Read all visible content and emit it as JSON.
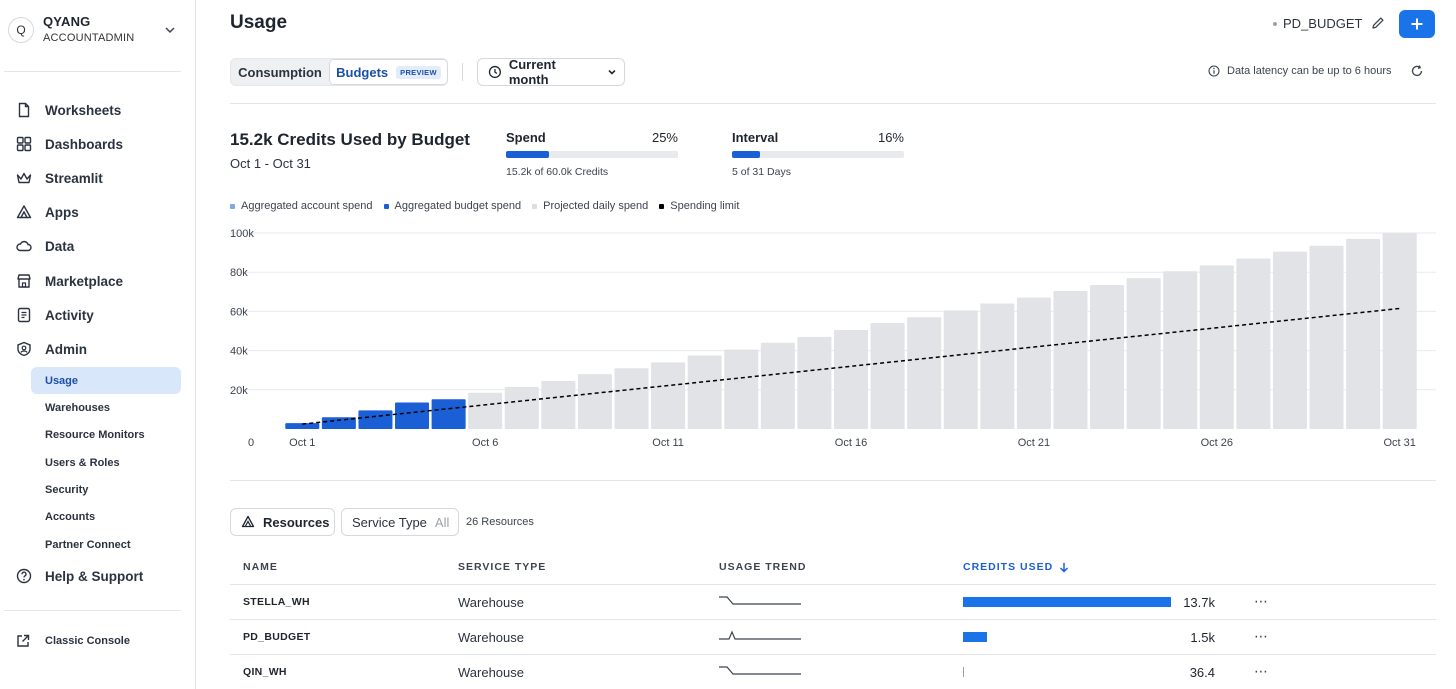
{
  "account": {
    "initial": "Q",
    "name": "QYANG",
    "role": "ACCOUNTADMIN"
  },
  "nav": [
    {
      "label": "Worksheets",
      "icon": "file-icon"
    },
    {
      "label": "Dashboards",
      "icon": "grid-icon"
    },
    {
      "label": "Streamlit",
      "icon": "crown-icon"
    },
    {
      "label": "Apps",
      "icon": "apps-icon"
    },
    {
      "label": "Data",
      "icon": "cloud-icon"
    },
    {
      "label": "Marketplace",
      "icon": "store-icon"
    },
    {
      "label": "Activity",
      "icon": "list-icon"
    },
    {
      "label": "Admin",
      "icon": "shield-icon"
    }
  ],
  "admin_sub": [
    "Usage",
    "Warehouses",
    "Resource Monitors",
    "Users & Roles",
    "Security",
    "Accounts",
    "Partner Connect"
  ],
  "help": "Help & Support",
  "classic": "Classic Console",
  "page": {
    "title": "Usage",
    "budget_name": "PD_BUDGET",
    "tabs": {
      "consumption": "Consumption",
      "budgets": "Budgets",
      "preview": "PREVIEW"
    },
    "period": "Current month",
    "latency": "Data latency can be up to 6 hours"
  },
  "summary": {
    "title": "15.2k Credits Used by Budget",
    "range": "Oct 1 - Oct 31",
    "spend": {
      "label": "Spend",
      "pct": "25%",
      "fraction": 0.25,
      "sub": "15.2k of 60.0k Credits"
    },
    "interval": {
      "label": "Interval",
      "pct": "16%",
      "fraction": 0.16,
      "sub": "5 of 31 Days"
    }
  },
  "legend": [
    {
      "label": "Aggregated account spend",
      "color": "#7fa8e6"
    },
    {
      "label": "Aggregated budget spend",
      "color": "#1a5fd6"
    },
    {
      "label": "Projected daily spend",
      "color": "#dadde1"
    },
    {
      "label": "Spending limit",
      "color": "#000000"
    }
  ],
  "chart_data": {
    "type": "bar",
    "x_labels": [
      "Oct 1",
      "Oct 6",
      "Oct 11",
      "Oct 16",
      "Oct 21",
      "Oct 26",
      "Oct 31"
    ],
    "y_ticks": [
      "100k",
      "80k",
      "60k",
      "40k",
      "20k",
      "0"
    ],
    "ylim": [
      0,
      100000
    ],
    "days": 31,
    "actual_values": [
      3000,
      6000,
      9500,
      13500,
      15200
    ],
    "projected_values": [
      18500,
      21500,
      24500,
      28000,
      31000,
      34000,
      37500,
      40500,
      44000,
      47000,
      50500,
      54000,
      57000,
      60500,
      64000,
      67000,
      70500,
      73500,
      77000,
      80500,
      83500,
      87000,
      90500,
      93500,
      97000,
      100000
    ],
    "spending_limit": {
      "start": 2500,
      "end": 61500
    }
  },
  "resources": {
    "button": "Resources",
    "service_type_label": "Service Type",
    "service_type_value": "All",
    "count": "26 Resources",
    "headers": {
      "name": "NAME",
      "type": "SERVICE TYPE",
      "trend": "USAGE TREND",
      "credits": "CREDITS USED"
    },
    "rows": [
      {
        "name": "STELLA_WH",
        "type": "Warehouse",
        "credits": "13.7k",
        "fraction": 1.0,
        "trend": "step"
      },
      {
        "name": "PD_BUDGET",
        "type": "Warehouse",
        "credits": "1.5k",
        "fraction": 0.115,
        "trend": "spike"
      },
      {
        "name": "QIN_WH",
        "type": "Warehouse",
        "credits": "36.4",
        "fraction": 0.005,
        "trend": "step"
      }
    ]
  }
}
